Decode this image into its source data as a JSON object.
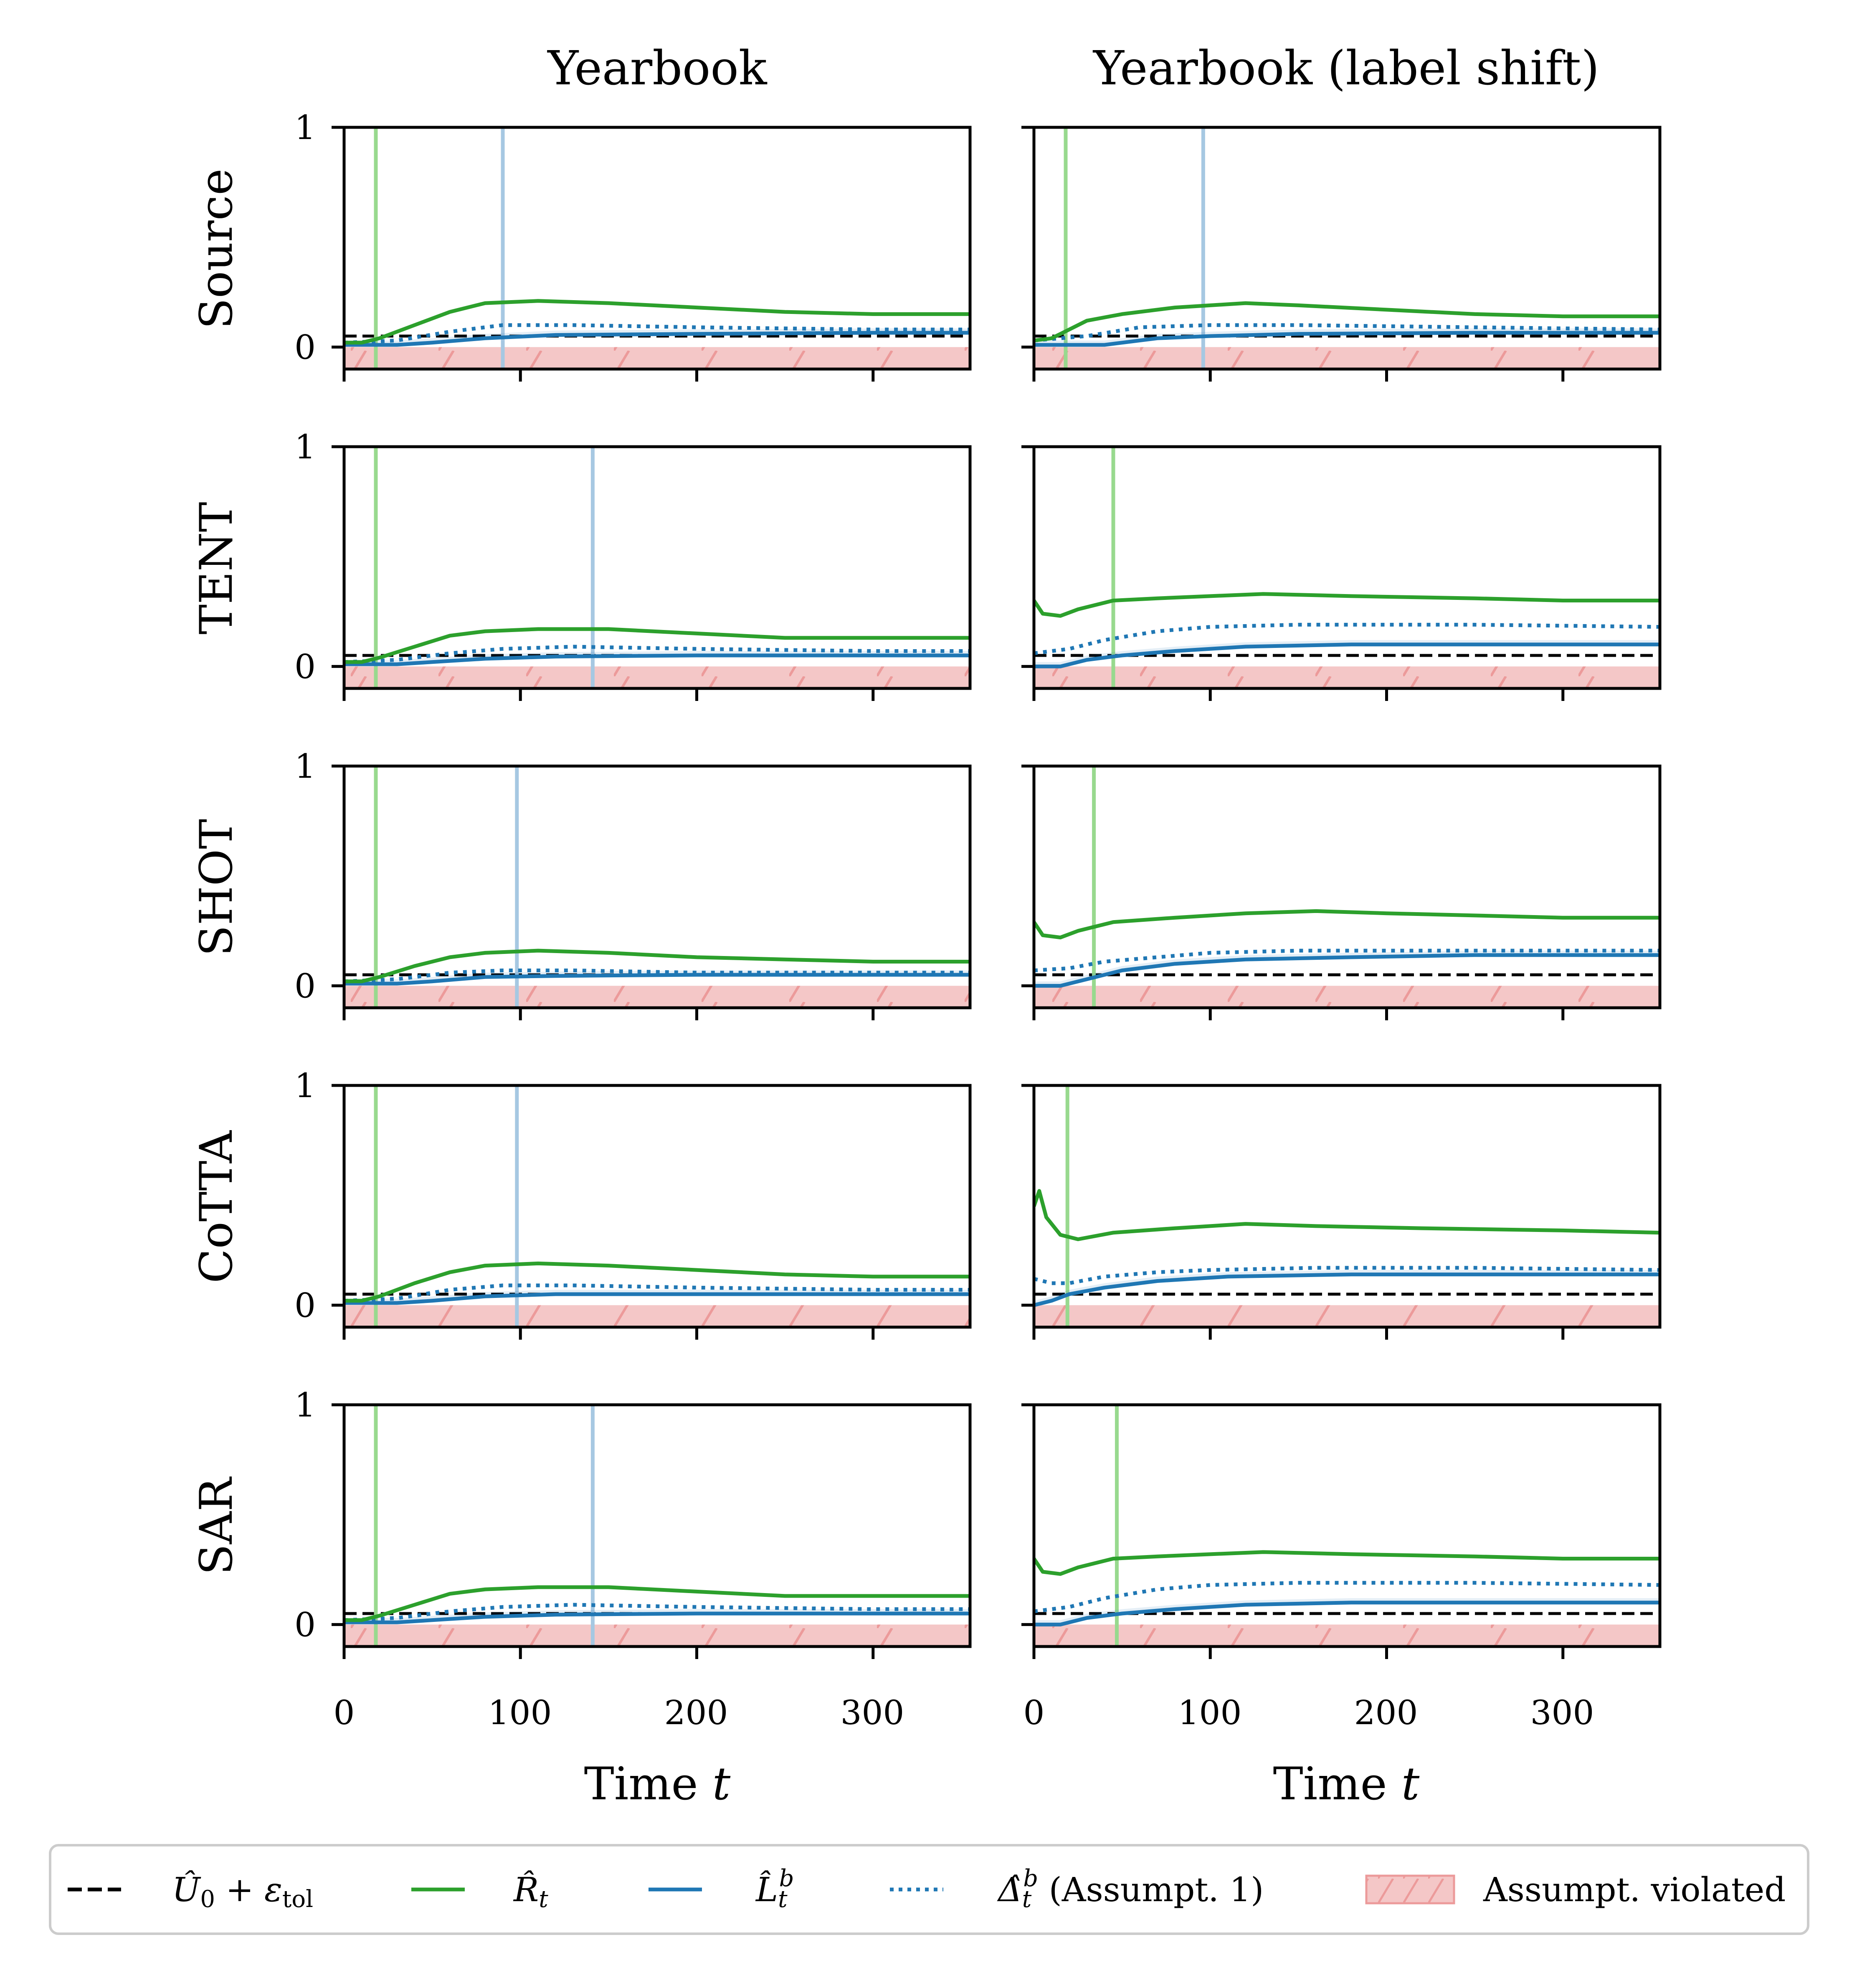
{
  "chart_data": {
    "type": "line",
    "columns": [
      "Yearbook",
      "Yearbook (label shift)"
    ],
    "rows": [
      "Source",
      "TENT",
      "SHOT",
      "CoTTA",
      "SAR"
    ],
    "xlabel": "Time t",
    "xlabel_text": "Time ",
    "xlabel_var": "t",
    "xlim": [
      0,
      355
    ],
    "ylim": [
      -0.1,
      1
    ],
    "xticks": [
      "0",
      "100",
      "200",
      "300"
    ],
    "yticks": [
      "0",
      "1"
    ],
    "threshold": 0.05,
    "legend": {
      "placement": "bottom",
      "entries": [
        "Û0 + εtol",
        "R̂t",
        "L̂t^b",
        "Δ̂t^b (Assumpt. 1)",
        "Assumpt. violated"
      ],
      "labels": {
        "threshold_main": "Û",
        "threshold_sub": "0",
        "threshold_eps": " + ε",
        "threshold_eps_sub": "tol",
        "risk_main": "R̂",
        "risk_sub": "t",
        "lower_main": "L̂",
        "lower_sub": "t",
        "lower_sup": "b",
        "delta_main": "Δ̂",
        "delta_sub": "t",
        "delta_sup": "b",
        "delta_note": " (Assumpt. 1)",
        "violated": "Assumpt. violated"
      }
    },
    "colors": {
      "risk": "#2ca02c",
      "lower": "#1f77b4",
      "delta": "#1f77b4",
      "threshold": "#000000",
      "violated": "#f4c7c7",
      "green_vline": "#98d98e",
      "blue_vline": "#a6c8e2"
    },
    "panels": [
      {
        "row": "Source",
        "col": "Yearbook",
        "green_vline": 18,
        "blue_vline": 90,
        "risk": [
          [
            0,
            0.02
          ],
          [
            10,
            0.02
          ],
          [
            20,
            0.04
          ],
          [
            40,
            0.1
          ],
          [
            60,
            0.16
          ],
          [
            80,
            0.2
          ],
          [
            110,
            0.21
          ],
          [
            150,
            0.2
          ],
          [
            200,
            0.18
          ],
          [
            250,
            0.16
          ],
          [
            300,
            0.15
          ],
          [
            355,
            0.15
          ]
        ],
        "lower": [
          [
            0,
            0.01
          ],
          [
            30,
            0.01
          ],
          [
            50,
            0.02
          ],
          [
            80,
            0.04
          ],
          [
            120,
            0.055
          ],
          [
            200,
            0.06
          ],
          [
            300,
            0.065
          ],
          [
            355,
            0.065
          ]
        ],
        "delta": [
          [
            0,
            0.02
          ],
          [
            30,
            0.03
          ],
          [
            60,
            0.07
          ],
          [
            90,
            0.1
          ],
          [
            130,
            0.1
          ],
          [
            200,
            0.09
          ],
          [
            300,
            0.08
          ],
          [
            355,
            0.08
          ]
        ]
      },
      {
        "row": "Source",
        "col": "Yearbook (label shift)",
        "green_vline": 18,
        "blue_vline": 96,
        "risk": [
          [
            0,
            0.03
          ],
          [
            10,
            0.04
          ],
          [
            20,
            0.08
          ],
          [
            30,
            0.12
          ],
          [
            50,
            0.15
          ],
          [
            80,
            0.18
          ],
          [
            100,
            0.19
          ],
          [
            120,
            0.2
          ],
          [
            150,
            0.19
          ],
          [
            200,
            0.17
          ],
          [
            250,
            0.15
          ],
          [
            300,
            0.14
          ],
          [
            355,
            0.14
          ]
        ],
        "lower": [
          [
            0,
            0.01
          ],
          [
            40,
            0.01
          ],
          [
            70,
            0.04
          ],
          [
            100,
            0.05
          ],
          [
            150,
            0.06
          ],
          [
            250,
            0.065
          ],
          [
            355,
            0.065
          ]
        ],
        "delta": [
          [
            0,
            0.03
          ],
          [
            30,
            0.05
          ],
          [
            60,
            0.09
          ],
          [
            100,
            0.1
          ],
          [
            150,
            0.1
          ],
          [
            250,
            0.09
          ],
          [
            355,
            0.08
          ]
        ]
      },
      {
        "row": "TENT",
        "col": "Yearbook",
        "green_vline": 18,
        "blue_vline": 141,
        "risk": [
          [
            0,
            0.02
          ],
          [
            10,
            0.02
          ],
          [
            20,
            0.04
          ],
          [
            40,
            0.09
          ],
          [
            60,
            0.14
          ],
          [
            80,
            0.16
          ],
          [
            110,
            0.17
          ],
          [
            150,
            0.17
          ],
          [
            200,
            0.15
          ],
          [
            250,
            0.13
          ],
          [
            300,
            0.13
          ],
          [
            355,
            0.13
          ]
        ],
        "lower": [
          [
            0,
            0.01
          ],
          [
            30,
            0.01
          ],
          [
            50,
            0.02
          ],
          [
            80,
            0.035
          ],
          [
            120,
            0.045
          ],
          [
            200,
            0.05
          ],
          [
            300,
            0.05
          ],
          [
            355,
            0.05
          ]
        ],
        "delta": [
          [
            0,
            0.02
          ],
          [
            30,
            0.03
          ],
          [
            60,
            0.06
          ],
          [
            90,
            0.08
          ],
          [
            130,
            0.09
          ],
          [
            200,
            0.08
          ],
          [
            300,
            0.07
          ],
          [
            355,
            0.07
          ]
        ]
      },
      {
        "row": "TENT",
        "col": "Yearbook (label shift)",
        "green_vline": 45,
        "risk": [
          [
            0,
            0.3
          ],
          [
            5,
            0.24
          ],
          [
            15,
            0.23
          ],
          [
            25,
            0.26
          ],
          [
            45,
            0.3
          ],
          [
            70,
            0.31
          ],
          [
            100,
            0.32
          ],
          [
            130,
            0.33
          ],
          [
            180,
            0.32
          ],
          [
            250,
            0.31
          ],
          [
            300,
            0.3
          ],
          [
            355,
            0.3
          ]
        ],
        "lower": [
          [
            0,
            0.0
          ],
          [
            15,
            0.0
          ],
          [
            30,
            0.03
          ],
          [
            50,
            0.05
          ],
          [
            80,
            0.07
          ],
          [
            120,
            0.09
          ],
          [
            180,
            0.1
          ],
          [
            250,
            0.1
          ],
          [
            355,
            0.1
          ]
        ],
        "delta": [
          [
            0,
            0.06
          ],
          [
            20,
            0.08
          ],
          [
            40,
            0.12
          ],
          [
            70,
            0.16
          ],
          [
            100,
            0.18
          ],
          [
            150,
            0.19
          ],
          [
            250,
            0.19
          ],
          [
            355,
            0.18
          ]
        ]
      },
      {
        "row": "SHOT",
        "col": "Yearbook",
        "green_vline": 18,
        "blue_vline": 98,
        "risk": [
          [
            0,
            0.02
          ],
          [
            10,
            0.02
          ],
          [
            20,
            0.04
          ],
          [
            40,
            0.09
          ],
          [
            60,
            0.13
          ],
          [
            80,
            0.15
          ],
          [
            110,
            0.16
          ],
          [
            150,
            0.15
          ],
          [
            200,
            0.13
          ],
          [
            250,
            0.12
          ],
          [
            300,
            0.11
          ],
          [
            355,
            0.11
          ]
        ],
        "lower": [
          [
            0,
            0.01
          ],
          [
            30,
            0.01
          ],
          [
            50,
            0.02
          ],
          [
            80,
            0.04
          ],
          [
            120,
            0.045
          ],
          [
            200,
            0.05
          ],
          [
            300,
            0.05
          ],
          [
            355,
            0.05
          ]
        ],
        "delta": [
          [
            0,
            0.02
          ],
          [
            30,
            0.03
          ],
          [
            60,
            0.06
          ],
          [
            90,
            0.07
          ],
          [
            130,
            0.07
          ],
          [
            200,
            0.06
          ],
          [
            300,
            0.06
          ],
          [
            355,
            0.06
          ]
        ]
      },
      {
        "row": "SHOT",
        "col": "Yearbook (label shift)",
        "green_vline": 34,
        "risk": [
          [
            0,
            0.29
          ],
          [
            5,
            0.23
          ],
          [
            15,
            0.22
          ],
          [
            25,
            0.25
          ],
          [
            45,
            0.29
          ],
          [
            80,
            0.31
          ],
          [
            120,
            0.33
          ],
          [
            160,
            0.34
          ],
          [
            200,
            0.33
          ],
          [
            250,
            0.32
          ],
          [
            300,
            0.31
          ],
          [
            355,
            0.31
          ]
        ],
        "lower": [
          [
            0,
            0.0
          ],
          [
            15,
            0.0
          ],
          [
            30,
            0.03
          ],
          [
            50,
            0.07
          ],
          [
            80,
            0.1
          ],
          [
            120,
            0.12
          ],
          [
            180,
            0.13
          ],
          [
            250,
            0.14
          ],
          [
            355,
            0.14
          ]
        ],
        "delta": [
          [
            0,
            0.07
          ],
          [
            20,
            0.08
          ],
          [
            40,
            0.11
          ],
          [
            70,
            0.13
          ],
          [
            100,
            0.15
          ],
          [
            150,
            0.16
          ],
          [
            250,
            0.16
          ],
          [
            355,
            0.16
          ]
        ]
      },
      {
        "row": "CoTTA",
        "col": "Yearbook",
        "green_vline": 18,
        "blue_vline": 98,
        "risk": [
          [
            0,
            0.02
          ],
          [
            10,
            0.02
          ],
          [
            20,
            0.04
          ],
          [
            40,
            0.1
          ],
          [
            60,
            0.15
          ],
          [
            80,
            0.18
          ],
          [
            110,
            0.19
          ],
          [
            150,
            0.18
          ],
          [
            200,
            0.16
          ],
          [
            250,
            0.14
          ],
          [
            300,
            0.13
          ],
          [
            355,
            0.13
          ]
        ],
        "lower": [
          [
            0,
            0.01
          ],
          [
            30,
            0.01
          ],
          [
            50,
            0.02
          ],
          [
            80,
            0.04
          ],
          [
            120,
            0.05
          ],
          [
            200,
            0.05
          ],
          [
            300,
            0.05
          ],
          [
            355,
            0.05
          ]
        ],
        "delta": [
          [
            0,
            0.02
          ],
          [
            30,
            0.03
          ],
          [
            60,
            0.07
          ],
          [
            90,
            0.09
          ],
          [
            130,
            0.09
          ],
          [
            200,
            0.08
          ],
          [
            300,
            0.07
          ],
          [
            355,
            0.07
          ]
        ]
      },
      {
        "row": "CoTTA",
        "col": "Yearbook (label shift)",
        "green_vline": 19,
        "risk": [
          [
            0,
            0.45
          ],
          [
            3,
            0.52
          ],
          [
            7,
            0.4
          ],
          [
            15,
            0.32
          ],
          [
            25,
            0.3
          ],
          [
            45,
            0.33
          ],
          [
            80,
            0.35
          ],
          [
            120,
            0.37
          ],
          [
            160,
            0.36
          ],
          [
            220,
            0.35
          ],
          [
            300,
            0.34
          ],
          [
            355,
            0.33
          ]
        ],
        "lower": [
          [
            0,
            0.0
          ],
          [
            10,
            0.02
          ],
          [
            20,
            0.05
          ],
          [
            40,
            0.08
          ],
          [
            70,
            0.11
          ],
          [
            110,
            0.13
          ],
          [
            180,
            0.14
          ],
          [
            250,
            0.14
          ],
          [
            355,
            0.14
          ]
        ],
        "delta": [
          [
            0,
            0.12
          ],
          [
            10,
            0.1
          ],
          [
            20,
            0.1
          ],
          [
            40,
            0.13
          ],
          [
            70,
            0.15
          ],
          [
            100,
            0.16
          ],
          [
            160,
            0.17
          ],
          [
            250,
            0.17
          ],
          [
            355,
            0.16
          ]
        ]
      },
      {
        "row": "SAR",
        "col": "Yearbook",
        "green_vline": 18,
        "blue_vline": 141,
        "risk": [
          [
            0,
            0.02
          ],
          [
            10,
            0.02
          ],
          [
            20,
            0.04
          ],
          [
            40,
            0.09
          ],
          [
            60,
            0.14
          ],
          [
            80,
            0.16
          ],
          [
            110,
            0.17
          ],
          [
            150,
            0.17
          ],
          [
            200,
            0.15
          ],
          [
            250,
            0.13
          ],
          [
            300,
            0.13
          ],
          [
            355,
            0.13
          ]
        ],
        "lower": [
          [
            0,
            0.01
          ],
          [
            30,
            0.01
          ],
          [
            50,
            0.02
          ],
          [
            80,
            0.035
          ],
          [
            120,
            0.045
          ],
          [
            200,
            0.05
          ],
          [
            300,
            0.05
          ],
          [
            355,
            0.05
          ]
        ],
        "delta": [
          [
            0,
            0.02
          ],
          [
            30,
            0.03
          ],
          [
            60,
            0.06
          ],
          [
            90,
            0.08
          ],
          [
            130,
            0.09
          ],
          [
            200,
            0.08
          ],
          [
            300,
            0.07
          ],
          [
            355,
            0.07
          ]
        ]
      },
      {
        "row": "SAR",
        "col": "Yearbook (label shift)",
        "green_vline": 47,
        "risk": [
          [
            0,
            0.3
          ],
          [
            5,
            0.24
          ],
          [
            15,
            0.23
          ],
          [
            25,
            0.26
          ],
          [
            45,
            0.3
          ],
          [
            70,
            0.31
          ],
          [
            100,
            0.32
          ],
          [
            130,
            0.33
          ],
          [
            180,
            0.32
          ],
          [
            250,
            0.31
          ],
          [
            300,
            0.3
          ],
          [
            355,
            0.3
          ]
        ],
        "lower": [
          [
            0,
            0.0
          ],
          [
            15,
            0.0
          ],
          [
            30,
            0.03
          ],
          [
            50,
            0.05
          ],
          [
            80,
            0.07
          ],
          [
            120,
            0.09
          ],
          [
            180,
            0.1
          ],
          [
            250,
            0.1
          ],
          [
            355,
            0.1
          ]
        ],
        "delta": [
          [
            0,
            0.06
          ],
          [
            20,
            0.08
          ],
          [
            40,
            0.12
          ],
          [
            70,
            0.16
          ],
          [
            100,
            0.18
          ],
          [
            150,
            0.19
          ],
          [
            250,
            0.19
          ],
          [
            355,
            0.18
          ]
        ]
      }
    ]
  }
}
